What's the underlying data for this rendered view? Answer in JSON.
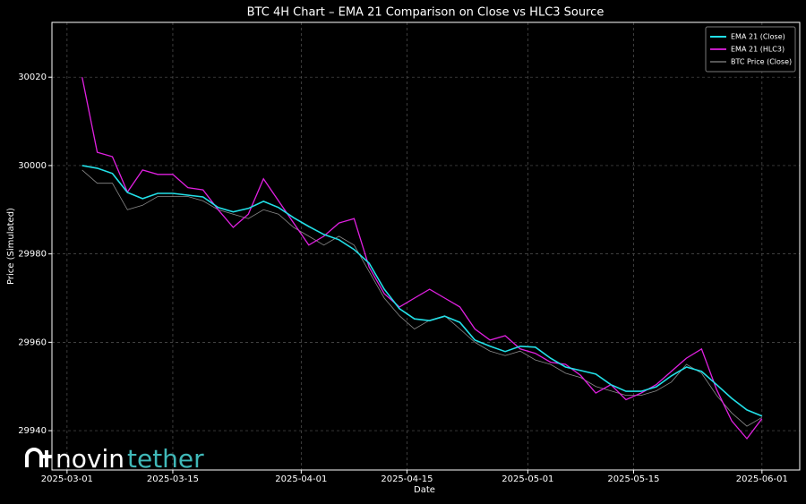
{
  "chart_data": {
    "type": "line",
    "title": "BTC 4H Chart – EMA 21 Comparison on Close vs HLC3 Source",
    "xlabel": "Date",
    "ylabel": "Price (Simulated)",
    "watermark": [
      "novin",
      "tether"
    ],
    "x": [
      "2025-03-03",
      "2025-03-05",
      "2025-03-07",
      "2025-03-09",
      "2025-03-11",
      "2025-03-13",
      "2025-03-15",
      "2025-03-17",
      "2025-03-19",
      "2025-03-21",
      "2025-03-23",
      "2025-03-25",
      "2025-03-27",
      "2025-03-29",
      "2025-03-31",
      "2025-04-02",
      "2025-04-04",
      "2025-04-06",
      "2025-04-08",
      "2025-04-10",
      "2025-04-12",
      "2025-04-14",
      "2025-04-16",
      "2025-04-18",
      "2025-04-20",
      "2025-04-22",
      "2025-04-24",
      "2025-04-26",
      "2025-04-28",
      "2025-04-30",
      "2025-05-02",
      "2025-05-04",
      "2025-05-06",
      "2025-05-08",
      "2025-05-10",
      "2025-05-12",
      "2025-05-14",
      "2025-05-16",
      "2025-05-18",
      "2025-05-20",
      "2025-05-22",
      "2025-05-24",
      "2025-05-26",
      "2025-05-28",
      "2025-05-30",
      "2025-06-01"
    ],
    "series": [
      {
        "name": "EMA 21 (Close)",
        "color": "#22e0e8",
        "width": 1.6,
        "values": [
          30000,
          29999.4,
          29998.2,
          29993.9,
          29992.5,
          29993.7,
          29993.7,
          29993.3,
          29992.9,
          29990.5,
          29989.5,
          29990.3,
          29991.9,
          29990.5,
          29988.2,
          29986.2,
          29984.4,
          29983.2,
          29981,
          29977.9,
          29972,
          29967.6,
          29965.3,
          29964.9,
          29965.9,
          29964.5,
          29960.5,
          29959.1,
          29957.9,
          29959.1,
          29958.9,
          29956.4,
          29954.4,
          29953.6,
          29952.8,
          29950.4,
          29948.9,
          29948.9,
          29949.9,
          29952.4,
          29954.4,
          29953.4,
          29950.4,
          29947.3,
          29944.7,
          29943.3
        ]
      },
      {
        "name": "EMA 21 (HLC3)",
        "color": "#e020e0",
        "width": 1.3,
        "values": [
          30020,
          30003,
          30002,
          29994,
          29999,
          29998,
          29998,
          29995,
          29994.5,
          29990,
          29986,
          29989,
          29997,
          29992,
          29987,
          29982,
          29984,
          29987,
          29988,
          29977,
          29971,
          29968,
          29970,
          29972,
          29970,
          29968,
          29963,
          29960.5,
          29961.5,
          29958.5,
          29957.5,
          29955.5,
          29955,
          29952.5,
          29948.5,
          29950.4,
          29947,
          29948.5,
          29950.4,
          29953.4,
          29956.4,
          29958.5,
          29949.3,
          29942.2,
          29938.2,
          29942.7
        ]
      },
      {
        "name": "BTC Price (Close)",
        "color": "#8a8a8a",
        "width": 0.8,
        "values": [
          29999,
          29996,
          29996,
          29990,
          29991,
          29993,
          29993,
          29993,
          29992,
          29990,
          29989,
          29988,
          29990,
          29989,
          29986,
          29984,
          29982,
          29984,
          29982,
          29976,
          29970,
          29966,
          29963,
          29965,
          29966,
          29963,
          29960,
          29958,
          29957,
          29958,
          29956,
          29955,
          29953,
          29952,
          29950,
          29949,
          29948,
          29948,
          29949,
          29951,
          29955,
          29953,
          29948,
          29944,
          29941,
          29943
        ]
      }
    ],
    "xlim": [
      "2025-02-27",
      "2025-06-06"
    ],
    "xticks": [
      "2025-03-01",
      "2025-03-15",
      "2025-04-01",
      "2025-04-15",
      "2025-05-01",
      "2025-05-15",
      "2025-06-01"
    ],
    "ylim": [
      29931.1,
      30032.4
    ],
    "yticks": [
      29940,
      29960,
      29980,
      30000,
      30020
    ],
    "grid": true,
    "legend": "upper right"
  }
}
